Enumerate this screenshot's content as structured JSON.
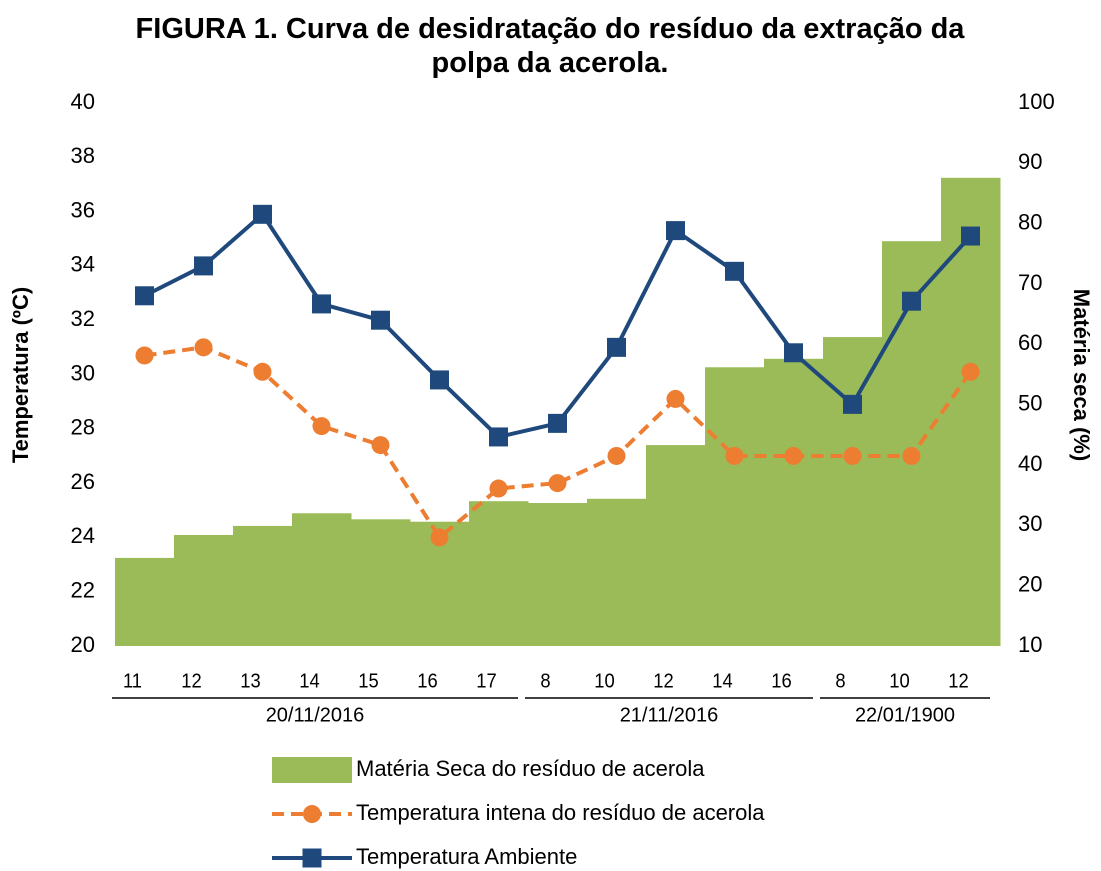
{
  "chart_data": {
    "type": "bar-line",
    "title": "FIGURA 1. Curva de desidratação do resíduo da extração da polpa da acerola.",
    "ylabel": "Temperatura (ºC)",
    "y2label": "Matéria seca (%)",
    "category_groups": [
      {
        "name": "20/11/2016",
        "categories": [
          "11",
          "12",
          "13",
          "14",
          "15",
          "16",
          "17"
        ]
      },
      {
        "name": "21/11/2016",
        "categories": [
          "8",
          "10",
          "12",
          "14",
          "16"
        ]
      },
      {
        "name": "22/01/1900",
        "categories": [
          "8",
          "10",
          "12"
        ]
      }
    ],
    "ylim": [
      20,
      40
    ],
    "yticks": [
      20,
      22,
      24,
      26,
      28,
      30,
      32,
      34,
      36,
      38,
      40
    ],
    "y2lim": [
      10,
      100
    ],
    "y2ticks": [
      10,
      20,
      30,
      40,
      50,
      60,
      70,
      80,
      90,
      100
    ],
    "series": [
      {
        "name": "Matéria Seca do resíduo de acerola",
        "type": "bar",
        "axis": "y2",
        "color": "#9bbb59",
        "values": [
          24.6,
          28.4,
          29.9,
          32.0,
          31.0,
          30.6,
          34.0,
          33.7,
          34.4,
          43.3,
          56.2,
          57.6,
          61.2,
          77.1,
          87.6
        ]
      },
      {
        "name": "Temperatura intena do resíduo de acerola",
        "type": "line",
        "dashed": true,
        "marker": "circle",
        "color": "#ed7d31",
        "values": [
          30.7,
          31.0,
          30.1,
          28.1,
          27.4,
          24.0,
          25.8,
          26.0,
          27.0,
          29.1,
          27.0,
          27.0,
          27.0,
          27.0,
          30.1
        ]
      },
      {
        "name": "Temperatura Ambiente",
        "type": "line",
        "dashed": false,
        "marker": "square",
        "color": "#1f497d",
        "values": [
          32.9,
          34.0,
          35.9,
          32.6,
          32.0,
          29.8,
          27.7,
          28.2,
          31.0,
          35.3,
          33.8,
          30.8,
          28.9,
          32.7,
          35.1
        ]
      }
    ]
  }
}
